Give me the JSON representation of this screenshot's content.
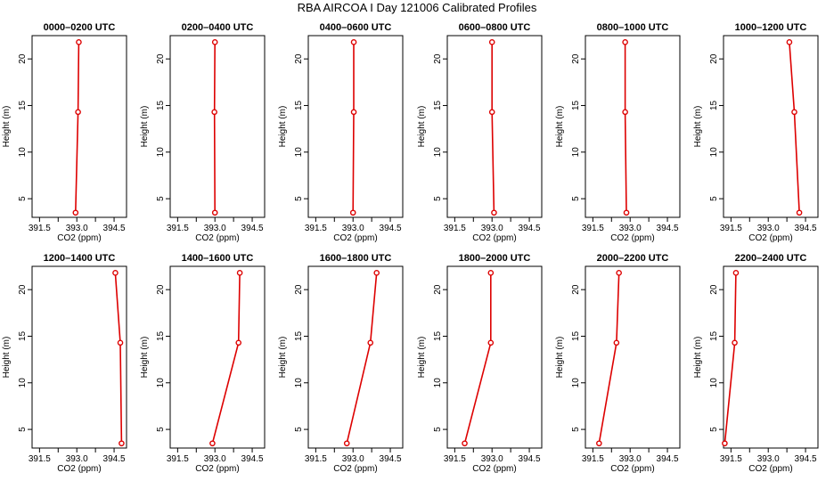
{
  "suptitle": "RBA AIRCOA I  Day 121006  Calibrated Profiles",
  "colors": {
    "line": "#dd0000",
    "frame": "#000000",
    "background": "#ffffff"
  },
  "chart_data": [
    {
      "type": "line",
      "title": "0000–0200 UTC",
      "xlabel": "CO2 (ppm)",
      "ylabel": "Height (m)",
      "xlim": [
        391.2,
        395.0
      ],
      "ylim": [
        3,
        22.5
      ],
      "x_ticks": [
        "391.5",
        "393.0",
        "394.5"
      ],
      "y_ticks": [
        "5",
        "10",
        "15",
        "20"
      ],
      "series": [
        {
          "x": [
            392.95,
            393.05,
            393.08
          ],
          "y": [
            3.5,
            14.3,
            21.8
          ]
        }
      ]
    },
    {
      "type": "line",
      "title": "0200–0400 UTC",
      "xlabel": "CO2 (ppm)",
      "ylabel": "Height (m)",
      "xlim": [
        391.2,
        395.0
      ],
      "ylim": [
        3,
        22.5
      ],
      "x_ticks": [
        "391.5",
        "393.0",
        "394.5"
      ],
      "y_ticks": [
        "5",
        "10",
        "15",
        "20"
      ],
      "series": [
        {
          "x": [
            393.0,
            392.98,
            393.0
          ],
          "y": [
            3.5,
            14.3,
            21.8
          ]
        }
      ]
    },
    {
      "type": "line",
      "title": "0400–0600 UTC",
      "xlabel": "CO2 (ppm)",
      "ylabel": "Height (m)",
      "xlim": [
        391.2,
        395.0
      ],
      "ylim": [
        3,
        22.5
      ],
      "x_ticks": [
        "391.5",
        "393.0",
        "394.5"
      ],
      "y_ticks": [
        "5",
        "10",
        "15",
        "20"
      ],
      "series": [
        {
          "x": [
            393.0,
            393.03,
            393.03
          ],
          "y": [
            3.5,
            14.3,
            21.8
          ]
        }
      ]
    },
    {
      "type": "line",
      "title": "0600–0800 UTC",
      "xlabel": "CO2 (ppm)",
      "ylabel": "Height (m)",
      "xlim": [
        391.2,
        395.0
      ],
      "ylim": [
        3,
        22.5
      ],
      "x_ticks": [
        "391.5",
        "393.0",
        "394.5"
      ],
      "y_ticks": [
        "5",
        "10",
        "15",
        "20"
      ],
      "series": [
        {
          "x": [
            393.08,
            393.0,
            393.0
          ],
          "y": [
            3.5,
            14.3,
            21.8
          ]
        }
      ]
    },
    {
      "type": "line",
      "title": "0800–1000 UTC",
      "xlabel": "CO2 (ppm)",
      "ylabel": "Height (m)",
      "xlim": [
        391.2,
        395.0
      ],
      "ylim": [
        3,
        22.5
      ],
      "x_ticks": [
        "391.5",
        "393.0",
        "394.5"
      ],
      "y_ticks": [
        "5",
        "10",
        "15",
        "20"
      ],
      "series": [
        {
          "x": [
            392.85,
            392.8,
            392.8
          ],
          "y": [
            3.5,
            14.3,
            21.8
          ]
        }
      ]
    },
    {
      "type": "line",
      "title": "1000–1200 UTC",
      "xlabel": "CO2 (ppm)",
      "ylabel": "Height (m)",
      "xlim": [
        391.2,
        395.0
      ],
      "ylim": [
        3,
        22.5
      ],
      "x_ticks": [
        "391.5",
        "393.0",
        "394.5"
      ],
      "y_ticks": [
        "5",
        "10",
        "15",
        "20"
      ],
      "series": [
        {
          "x": [
            394.25,
            394.05,
            393.85
          ],
          "y": [
            3.5,
            14.3,
            21.8
          ]
        }
      ]
    },
    {
      "type": "line",
      "title": "1200–1400 UTC",
      "xlabel": "CO2 (ppm)",
      "ylabel": "Height (m)",
      "xlim": [
        391.2,
        395.0
      ],
      "ylim": [
        3,
        22.5
      ],
      "x_ticks": [
        "391.5",
        "393.0",
        "394.5"
      ],
      "y_ticks": [
        "5",
        "10",
        "15",
        "20"
      ],
      "series": [
        {
          "x": [
            394.8,
            394.75,
            394.55
          ],
          "y": [
            3.5,
            14.3,
            21.8
          ]
        }
      ]
    },
    {
      "type": "line",
      "title": "1400–1600 UTC",
      "xlabel": "CO2 (ppm)",
      "ylabel": "Height (m)",
      "xlim": [
        391.2,
        395.0
      ],
      "ylim": [
        3,
        22.5
      ],
      "x_ticks": [
        "391.5",
        "393.0",
        "394.5"
      ],
      "y_ticks": [
        "5",
        "10",
        "15",
        "20"
      ],
      "series": [
        {
          "x": [
            392.9,
            393.95,
            394.0
          ],
          "y": [
            3.5,
            14.3,
            21.8
          ]
        }
      ]
    },
    {
      "type": "line",
      "title": "1600–1800 UTC",
      "xlabel": "CO2 (ppm)",
      "ylabel": "Height (m)",
      "xlim": [
        391.2,
        395.0
      ],
      "ylim": [
        3,
        22.5
      ],
      "x_ticks": [
        "391.5",
        "393.0",
        "394.5"
      ],
      "y_ticks": [
        "5",
        "10",
        "15",
        "20"
      ],
      "series": [
        {
          "x": [
            392.75,
            393.7,
            393.95
          ],
          "y": [
            3.5,
            14.3,
            21.8
          ]
        }
      ]
    },
    {
      "type": "line",
      "title": "1800–2000 UTC",
      "xlabel": "CO2 (ppm)",
      "ylabel": "Height (m)",
      "xlim": [
        391.2,
        395.0
      ],
      "ylim": [
        3,
        22.5
      ],
      "x_ticks": [
        "391.5",
        "393.0",
        "394.5"
      ],
      "y_ticks": [
        "5",
        "10",
        "15",
        "20"
      ],
      "series": [
        {
          "x": [
            391.9,
            392.95,
            392.95
          ],
          "y": [
            3.5,
            14.3,
            21.8
          ]
        }
      ]
    },
    {
      "type": "line",
      "title": "2000–2200 UTC",
      "xlabel": "CO2 (ppm)",
      "ylabel": "Height (m)",
      "xlim": [
        391.2,
        395.0
      ],
      "ylim": [
        3,
        22.5
      ],
      "x_ticks": [
        "391.5",
        "393.0",
        "394.5"
      ],
      "y_ticks": [
        "5",
        "10",
        "15",
        "20"
      ],
      "series": [
        {
          "x": [
            391.75,
            392.45,
            392.55
          ],
          "y": [
            3.5,
            14.3,
            21.8
          ]
        }
      ]
    },
    {
      "type": "line",
      "title": "2200–2400 UTC",
      "xlabel": "CO2 (ppm)",
      "ylabel": "Height (m)",
      "xlim": [
        391.2,
        395.0
      ],
      "ylim": [
        3,
        22.5
      ],
      "x_ticks": [
        "391.5",
        "393.0",
        "394.5"
      ],
      "y_ticks": [
        "5",
        "10",
        "15",
        "20"
      ],
      "series": [
        {
          "x": [
            391.25,
            391.65,
            391.7
          ],
          "y": [
            3.5,
            14.3,
            21.8
          ]
        }
      ]
    }
  ]
}
